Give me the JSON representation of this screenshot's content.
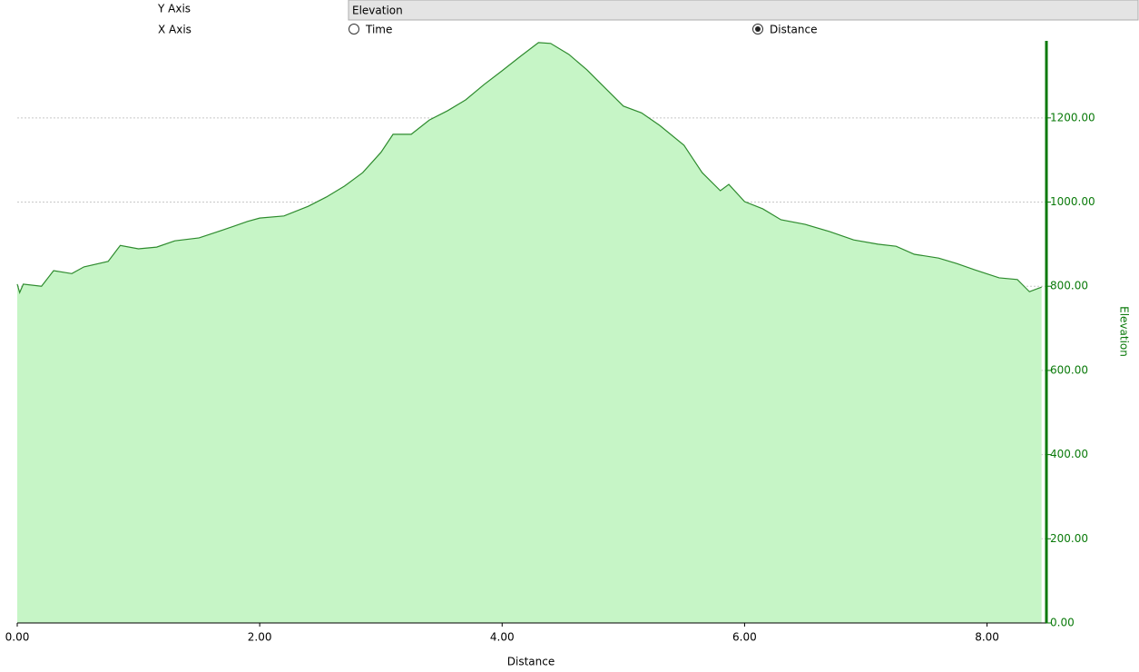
{
  "controls": {
    "y_axis_label": "Y Axis",
    "y_axis_value": "Elevation",
    "x_axis_label": "X Axis",
    "x_axis_options": [
      {
        "label": "Time",
        "checked": false
      },
      {
        "label": "Distance",
        "checked": true
      }
    ]
  },
  "chart_data": {
    "type": "area",
    "xlabel": "Distance",
    "ylabel": "Elevation",
    "x": [
      0,
      0.02,
      0.05,
      0.2,
      0.3,
      0.45,
      0.55,
      0.75,
      0.85,
      1.0,
      1.15,
      1.3,
      1.5,
      1.7,
      1.9,
      2.0,
      2.2,
      2.4,
      2.55,
      2.7,
      2.85,
      3.0,
      3.1,
      3.25,
      3.4,
      3.55,
      3.7,
      3.85,
      4.0,
      4.15,
      4.3,
      4.4,
      4.55,
      4.7,
      4.85,
      5.0,
      5.15,
      5.3,
      5.5,
      5.65,
      5.8,
      5.87,
      6.0,
      6.15,
      6.3,
      6.5,
      6.7,
      6.9,
      7.1,
      7.25,
      7.4,
      7.6,
      7.75,
      7.9,
      8.1,
      8.25,
      8.35,
      8.45
    ],
    "values": [
      805,
      785,
      805,
      800,
      837,
      830,
      846,
      859,
      897,
      889,
      893,
      908,
      915,
      934,
      954,
      962,
      967,
      990,
      1012,
      1038,
      1070,
      1118,
      1161,
      1161,
      1195,
      1217,
      1243,
      1279,
      1312,
      1346,
      1379,
      1377,
      1351,
      1314,
      1271,
      1228,
      1212,
      1182,
      1135,
      1070,
      1027,
      1042,
      1001,
      984,
      958,
      947,
      930,
      910,
      900,
      895,
      876,
      867,
      854,
      839,
      820,
      816,
      787,
      798
    ],
    "xlim": [
      0,
      8.49
    ],
    "ylim": [
      0,
      1383
    ],
    "xticks": [
      {
        "value": 0,
        "label": "0.00"
      },
      {
        "value": 2,
        "label": "2.00"
      },
      {
        "value": 4,
        "label": "4.00"
      },
      {
        "value": 6,
        "label": "6.00"
      },
      {
        "value": 8,
        "label": "8.00"
      }
    ],
    "yticks": [
      {
        "value": 0,
        "label": "0.00"
      },
      {
        "value": 200,
        "label": "200.00"
      },
      {
        "value": 400,
        "label": "400.00"
      },
      {
        "value": 600,
        "label": "600.00"
      },
      {
        "value": 800,
        "label": "800.00"
      },
      {
        "value": 1000,
        "label": "1000.00"
      },
      {
        "value": 1200,
        "label": "1200.00"
      }
    ],
    "y_axis_side": "right",
    "grid": true,
    "color": "#2e8b2e",
    "fill_color": "#c6f5c6",
    "axis_color": "#0a7a0a"
  }
}
